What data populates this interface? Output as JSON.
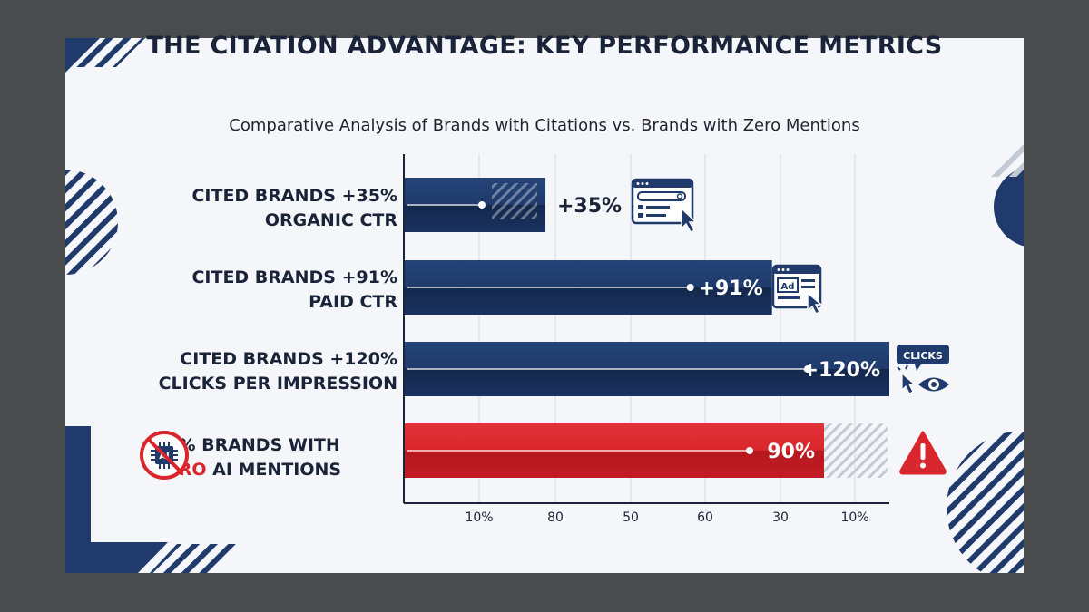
{
  "title": "THE CITATION ADVANTAGE: KEY PERFORMANCE METRICS",
  "subtitle": "Comparative Analysis of Brands with Citations vs. Brands with Zero Mentions",
  "colors": {
    "primary": "#1f3a6b",
    "accent": "#d9262c",
    "text": "#1a2338"
  },
  "rows": [
    {
      "line1": "CITED BRANDS  +35%",
      "line2": "ORGANIC CTR",
      "icon": "search-browser-icon"
    },
    {
      "line1": "CITED BRANDS  +91%",
      "line2": "PAID CTR",
      "icon": "ad-browser-icon"
    },
    {
      "line1": "CITED BRANDS +120%",
      "line2": "CLICKS PER IMPRESSION",
      "icon": "clicks-eye-icon",
      "badge": "CLICKS"
    },
    {
      "line1": "90% BRANDS WITH",
      "line2_red": "ZERO",
      "line2_rest": " AI MENTIONS",
      "icon": "warning-icon",
      "left_icon": "no-ai-icon"
    }
  ],
  "chart_data": {
    "type": "bar",
    "orientation": "horizontal",
    "categories": [
      "CITED BRANDS +35% ORGANIC CTR",
      "CITED BRANDS +91% PAID CTR",
      "CITED BRANDS +120% CLICKS PER IMPRESSION",
      "90% BRANDS WITH ZERO AI MENTIONS"
    ],
    "values": [
      35,
      91,
      120,
      90
    ],
    "data_labels": [
      "+35%",
      "+91%",
      "+120%",
      "90%"
    ],
    "bar_colors": [
      "#1f3a6b",
      "#1f3a6b",
      "#1f3a6b",
      "#d9262c"
    ],
    "x_tick_labels": [
      "10%",
      "80",
      "50",
      "60",
      "30",
      "10%"
    ],
    "grid": true,
    "legend": "none"
  }
}
